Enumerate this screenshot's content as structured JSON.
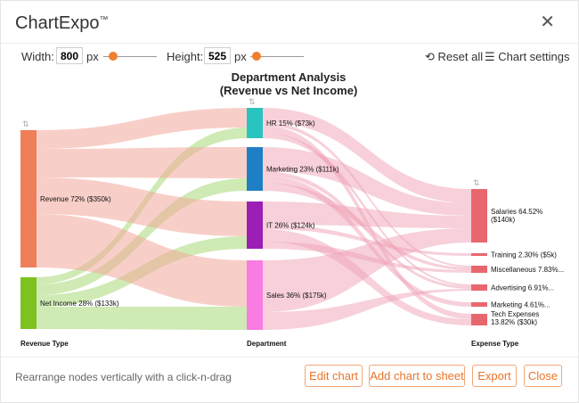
{
  "app": {
    "brand": "ChartExpo",
    "trademark": "™"
  },
  "toolbar": {
    "width_label": "Width:",
    "width_value": "800",
    "height_label": "Height:",
    "height_value": "525",
    "unit": "px",
    "reset_label": "Reset all",
    "settings_label": "Chart settings"
  },
  "chart_data": {
    "type": "sankey",
    "title_line1": "Department Analysis",
    "title_line2": "(Revenue vs Net Income)",
    "columns": [
      {
        "label": "Revenue Type",
        "nodes": [
          {
            "id": "revenue",
            "label": "Revenue 72% ($350k)",
            "value": 350,
            "color": "#ee7f5a"
          },
          {
            "id": "netincome",
            "label": "Net Income 28% ($133k)",
            "value": 133,
            "color": "#7dc221"
          }
        ]
      },
      {
        "label": "Department",
        "nodes": [
          {
            "id": "hr",
            "label": "HR 15% ($73k)",
            "value": 73,
            "color": "#2ac4c0"
          },
          {
            "id": "marketing",
            "label": "Marketing 23% ($111k)",
            "value": 111,
            "color": "#1f7fc4"
          },
          {
            "id": "it",
            "label": "IT 26% ($124k)",
            "value": 124,
            "color": "#9b1fb5"
          },
          {
            "id": "sales",
            "label": "Sales 36% ($175k)",
            "value": 175,
            "color": "#f97ce2"
          }
        ]
      },
      {
        "label": "Expense Type",
        "nodes": [
          {
            "id": "salaries",
            "label": "Salaries 64.52% ($140k)",
            "value": 140,
            "color": "#e8676f"
          },
          {
            "id": "training",
            "label": "Training 2.30% ($5k)",
            "value": 5,
            "color": "#e8676f"
          },
          {
            "id": "misc",
            "label": "Miscellaneous 7.83%...",
            "value": 17,
            "color": "#e8676f"
          },
          {
            "id": "advertising",
            "label": "Advertising 6.91%...",
            "value": 15,
            "color": "#e8676f"
          },
          {
            "id": "marketing_exp",
            "label": "Marketing 4.61%...",
            "value": 10,
            "color": "#e8676f"
          },
          {
            "id": "tech",
            "label": "Tech Expenses 13.82% ($30k)",
            "value": 30,
            "color": "#e8676f"
          }
        ]
      }
    ]
  },
  "footer": {
    "hint": "Rearrange nodes vertically with a click-n-drag",
    "edit_label": "Edit chart",
    "add_label": "Add chart to sheet",
    "export_label": "Export",
    "close_label": "Close"
  }
}
